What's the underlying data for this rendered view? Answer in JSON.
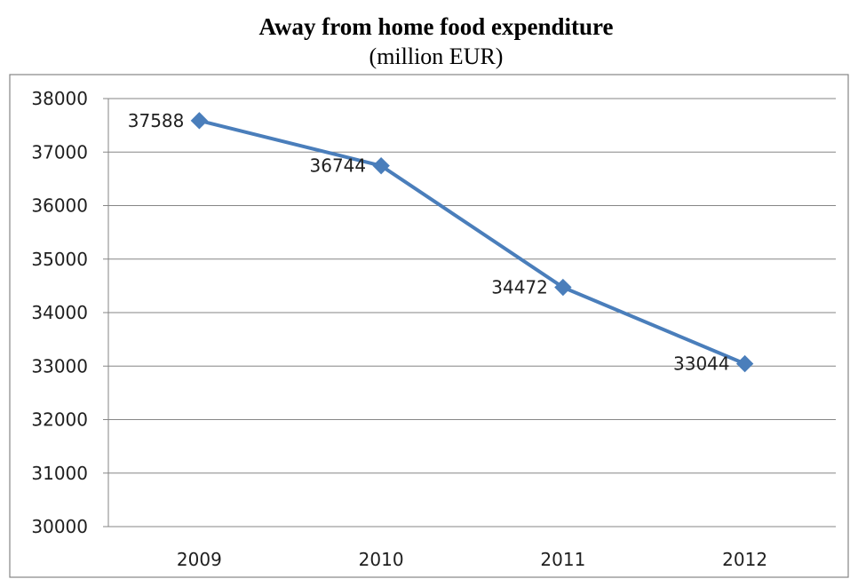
{
  "chart_data": {
    "type": "line",
    "title": "Away from home food expenditure",
    "subtitle": "(million EUR)",
    "xlabel": "",
    "ylabel": "",
    "categories": [
      "2009",
      "2010",
      "2011",
      "2012"
    ],
    "series": [
      {
        "values": [
          37588,
          36744,
          34472,
          33044
        ],
        "data_labels": [
          "37588",
          "36744",
          "34472",
          "33044"
        ],
        "color": "#4a7ebb",
        "marker": "diamond"
      }
    ],
    "ylim": [
      30000,
      38000
    ],
    "yticks": [
      30000,
      31000,
      32000,
      33000,
      34000,
      35000,
      36000,
      37000,
      38000
    ],
    "ytick_labels": [
      "30000",
      "31000",
      "32000",
      "33000",
      "34000",
      "35000",
      "36000",
      "37000",
      "38000"
    ],
    "grid": true,
    "legend": "none",
    "gridline_color": "#868686"
  }
}
